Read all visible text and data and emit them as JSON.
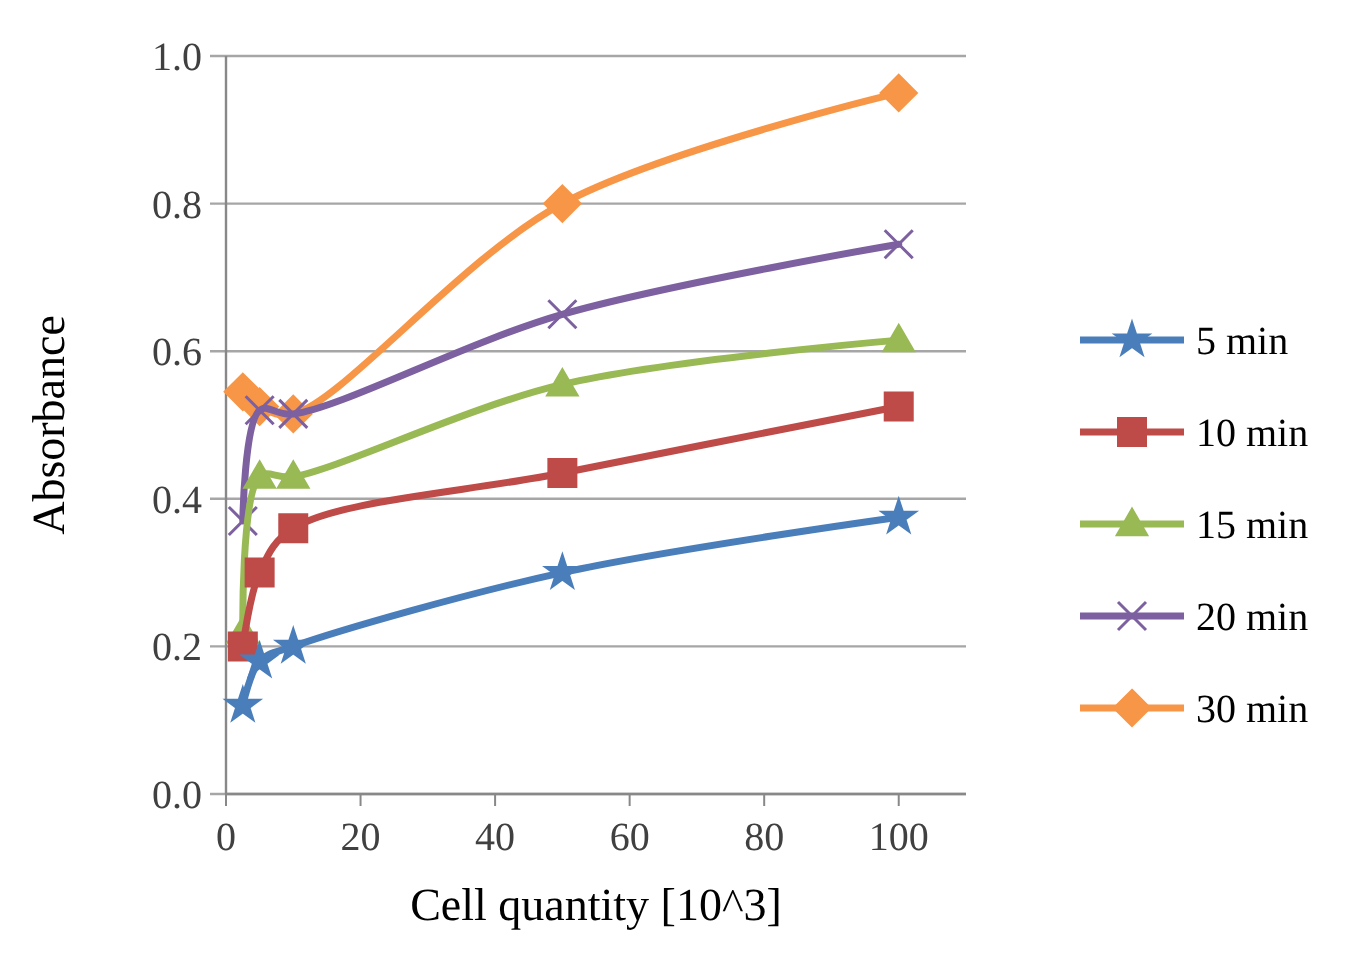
{
  "chart_data": {
    "type": "line",
    "xlabel": "Cell quantity [10^3]",
    "ylabel": "Absorbance",
    "x": [
      2.5,
      5,
      10,
      50,
      100
    ],
    "series": [
      {
        "name": "5 min",
        "color": "#4a7ebb",
        "marker": "star",
        "values": [
          0.12,
          0.18,
          0.2,
          0.3,
          0.375
        ]
      },
      {
        "name": "10 min",
        "color": "#be4b48",
        "marker": "square",
        "values": [
          0.2,
          0.3,
          0.36,
          0.435,
          0.525
        ]
      },
      {
        "name": "15 min",
        "color": "#98b954",
        "marker": "triangle",
        "values": [
          0.22,
          0.43,
          0.43,
          0.555,
          0.615
        ]
      },
      {
        "name": "20 min",
        "color": "#7d60a0",
        "marker": "cross",
        "values": [
          0.37,
          0.52,
          0.515,
          0.65,
          0.745
        ]
      },
      {
        "name": "30 min",
        "color": "#f79646",
        "marker": "diamond",
        "values": [
          0.545,
          0.525,
          0.515,
          0.8,
          0.95
        ]
      }
    ],
    "xlim": [
      0,
      110
    ],
    "xticks": [
      0,
      20,
      40,
      60,
      80,
      100
    ],
    "ylim": [
      0,
      1
    ],
    "yticks": [
      {
        "value": 0,
        "label": "0.0"
      },
      {
        "value": 0.2,
        "label": "0.2"
      },
      {
        "value": 0.4,
        "label": "0.4"
      },
      {
        "value": 0.6,
        "label": "0.6"
      },
      {
        "value": 0.8,
        "label": "0.8"
      },
      {
        "value": 1,
        "label": "1.0"
      }
    ],
    "grid": "y",
    "legend": "right"
  }
}
